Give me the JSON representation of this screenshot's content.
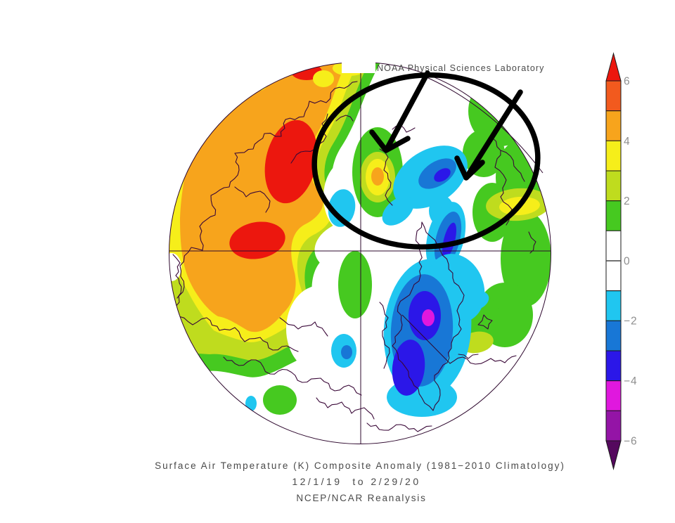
{
  "header": {
    "label": "NOAA Physical Sciences Laboratory"
  },
  "titles": {
    "line1": "Surface Air Temperature (K) Composite Anomaly (1981−2010 Climatology)",
    "line2": "12/1/19  to 2/29/20",
    "line3": "NCEP/NCAR Reanalysis"
  },
  "colorbar": {
    "labels": [
      "6",
      "4",
      "2",
      "0",
      "−2",
      "−4",
      "−6"
    ],
    "over_color": "#EC170E",
    "under_color": "#55095E",
    "segments": [
      {
        "from": 5,
        "to": 6,
        "color": "#F25A1E"
      },
      {
        "from": 4,
        "to": 5,
        "color": "#F7A41C"
      },
      {
        "from": 3,
        "to": 4,
        "color": "#F6EE1A"
      },
      {
        "from": 2,
        "to": 3,
        "color": "#BFDC1E"
      },
      {
        "from": 1,
        "to": 2,
        "color": "#46C920"
      },
      {
        "from": -1,
        "to": 1,
        "color": "#FFFFFF"
      },
      {
        "from": -2,
        "to": -1,
        "color": "#20C6F0"
      },
      {
        "from": -3,
        "to": -2,
        "color": "#1877D6"
      },
      {
        "from": -4,
        "to": -3,
        "color": "#2B17E8"
      },
      {
        "from": -5,
        "to": -4,
        "color": "#E018DE"
      },
      {
        "from": -6,
        "to": -5,
        "color": "#9414A6"
      }
    ]
  },
  "map": {
    "projection": "north-polar-stereographic",
    "coastline_color": "#3A0838",
    "graticule_color": "#2E082E",
    "annotation_color": "#000000",
    "annotation": {
      "ellipse": 1,
      "arrows": 2
    }
  }
}
